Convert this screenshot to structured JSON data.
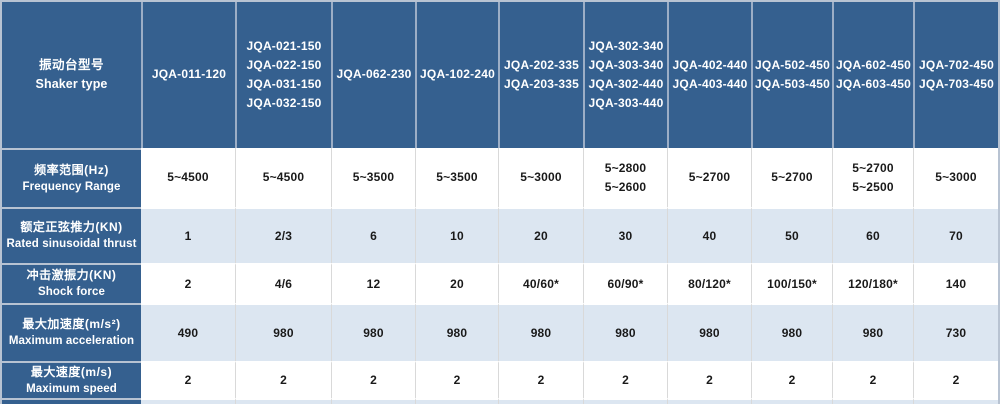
{
  "table": {
    "corner": {
      "zh": "振动台型号",
      "en": "Shaker type"
    },
    "models": [
      "JQA-011-120",
      "JQA-021-150\nJQA-022-150\nJQA-031-150\nJQA-032-150",
      "JQA-062-230",
      "JQA-102-240",
      "JQA-202-335\nJQA-203-335",
      "JQA-302-340\nJQA-303-340\nJQA-302-440\nJQA-303-440",
      "JQA-402-440\nJQA-403-440",
      "JQA-502-450\nJQA-503-450",
      "JQA-602-450\nJQA-603-450",
      "JQA-702-450\nJQA-703-450"
    ],
    "rows": [
      {
        "zh": "频率范围(Hz)",
        "en": "Frequency Range",
        "values": [
          "5~4500",
          "5~4500",
          "5~3500",
          "5~3500",
          "5~3000",
          "5~2800\n5~2600",
          "5~2700",
          "5~2700",
          "5~2700\n5~2500",
          "5~3000"
        ]
      },
      {
        "zh": "额定正弦推力(KN)",
        "en": "Rated sinusoidal thrust",
        "values": [
          "1",
          "2/3",
          "6",
          "10",
          "20",
          "30",
          "40",
          "50",
          "60",
          "70"
        ]
      },
      {
        "zh": "冲击激振力(KN)",
        "en": "Shock force",
        "values": [
          "2",
          "4/6",
          "12",
          "20",
          "40/60*",
          "60/90*",
          "80/120*",
          "100/150*",
          "120/180*",
          "140"
        ]
      },
      {
        "zh": "最大加速度(m/s²)",
        "en": "Maximum acceleration",
        "values": [
          "490",
          "980",
          "980",
          "980",
          "980",
          "980",
          "980",
          "980",
          "980",
          "730"
        ]
      },
      {
        "zh": "最大速度(m/s)",
        "en": "Maximum speed",
        "values": [
          "2",
          "2",
          "2",
          "2",
          "2",
          "2",
          "2",
          "2",
          "2",
          "2"
        ]
      }
    ],
    "colors": {
      "header_blue": "#35608F",
      "row_alt_blue": "#DCE6F1",
      "row_white": "#FFFFFF",
      "outer_border": "#B8C3D2",
      "header_separator": "#9CAEC6",
      "cell_separator": "#D9D9D9",
      "header_text": "#FFFFFF",
      "data_text": "#1A1A1A"
    }
  }
}
